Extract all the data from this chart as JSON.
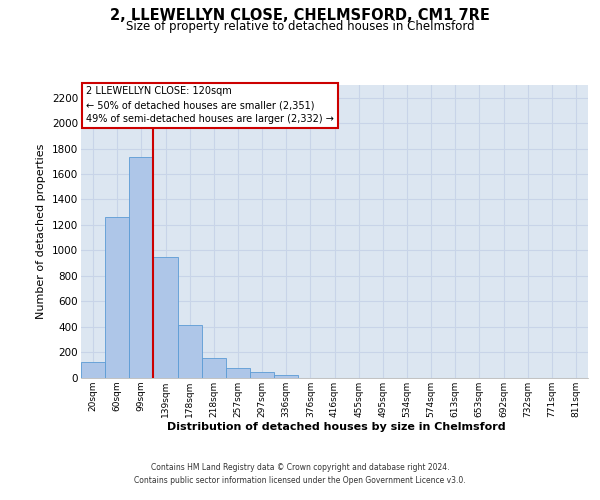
{
  "title": "2, LLEWELLYN CLOSE, CHELMSFORD, CM1 7RE",
  "subtitle": "Size of property relative to detached houses in Chelmsford",
  "xlabel": "Distribution of detached houses by size in Chelmsford",
  "ylabel": "Number of detached properties",
  "categories": [
    "20sqm",
    "60sqm",
    "99sqm",
    "139sqm",
    "178sqm",
    "218sqm",
    "257sqm",
    "297sqm",
    "336sqm",
    "376sqm",
    "416sqm",
    "455sqm",
    "495sqm",
    "534sqm",
    "574sqm",
    "613sqm",
    "653sqm",
    "692sqm",
    "732sqm",
    "771sqm",
    "811sqm"
  ],
  "values": [
    120,
    1260,
    1730,
    950,
    410,
    155,
    78,
    40,
    22,
    0,
    0,
    0,
    0,
    0,
    0,
    0,
    0,
    0,
    0,
    0,
    0
  ],
  "bar_color": "#aec6e8",
  "bar_edge_color": "#5b9bd5",
  "grid_color": "#c8d4e8",
  "background_color": "#dce6f1",
  "vline_color": "#cc0000",
  "annotation_text": "2 LLEWELLYN CLOSE: 120sqm\n← 50% of detached houses are smaller (2,351)\n49% of semi-detached houses are larger (2,332) →",
  "annotation_box_color": "#ffffff",
  "annotation_box_edge": "#cc0000",
  "ylim": [
    0,
    2300
  ],
  "yticks": [
    0,
    200,
    400,
    600,
    800,
    1000,
    1200,
    1400,
    1600,
    1800,
    2000,
    2200
  ],
  "footer_line1": "Contains HM Land Registry data © Crown copyright and database right 2024.",
  "footer_line2": "Contains public sector information licensed under the Open Government Licence v3.0."
}
